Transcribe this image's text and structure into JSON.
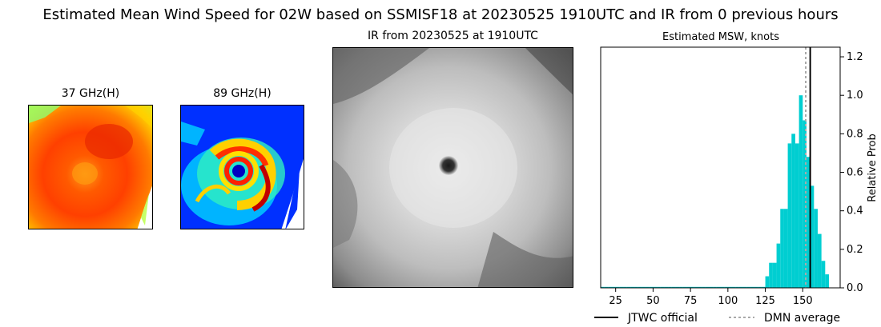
{
  "title": "Estimated Mean Wind Speed for 02W based on SSMISF18 at 20230525 1910UTC and IR from 0 previous hours",
  "panels": {
    "ghz37": {
      "title": "37 GHz(H)"
    },
    "ghz89": {
      "title": "89 GHz(H)"
    },
    "ir": {
      "title": "IR from 20230525 at 1910UTC"
    }
  },
  "colors": {
    "bars": "#00CED1",
    "jtwc_line": "#000000",
    "dmn_line": "#A9A9A9"
  },
  "chart_data": {
    "type": "bar",
    "title": "Estimated MSW, knots",
    "xlabel": "",
    "ylabel": "Relative Prob",
    "xlim": [
      15,
      175
    ],
    "ylim": [
      0,
      1.25
    ],
    "xticks": [
      25,
      50,
      75,
      100,
      125,
      150
    ],
    "yticks": [
      0.0,
      0.2,
      0.4,
      0.6,
      0.8,
      1.0,
      1.2
    ],
    "bin_width": 2.5,
    "bins": [
      {
        "x": 15,
        "value": 0.005
      },
      {
        "x": 17.5,
        "value": 0.005
      },
      {
        "x": 20,
        "value": 0.005
      },
      {
        "x": 22.5,
        "value": 0.005
      },
      {
        "x": 25,
        "value": 0.005
      },
      {
        "x": 27.5,
        "value": 0.005
      },
      {
        "x": 30,
        "value": 0.005
      },
      {
        "x": 32.5,
        "value": 0.005
      },
      {
        "x": 35,
        "value": 0.005
      },
      {
        "x": 37.5,
        "value": 0.005
      },
      {
        "x": 40,
        "value": 0.005
      },
      {
        "x": 42.5,
        "value": 0.005
      },
      {
        "x": 45,
        "value": 0.005
      },
      {
        "x": 47.5,
        "value": 0.005
      },
      {
        "x": 50,
        "value": 0.005
      },
      {
        "x": 52.5,
        "value": 0.005
      },
      {
        "x": 55,
        "value": 0.005
      },
      {
        "x": 57.5,
        "value": 0.005
      },
      {
        "x": 60,
        "value": 0.005
      },
      {
        "x": 62.5,
        "value": 0.005
      },
      {
        "x": 65,
        "value": 0.005
      },
      {
        "x": 67.5,
        "value": 0.005
      },
      {
        "x": 70,
        "value": 0.005
      },
      {
        "x": 72.5,
        "value": 0.005
      },
      {
        "x": 75,
        "value": 0.005
      },
      {
        "x": 77.5,
        "value": 0.005
      },
      {
        "x": 80,
        "value": 0.005
      },
      {
        "x": 82.5,
        "value": 0.005
      },
      {
        "x": 85,
        "value": 0.005
      },
      {
        "x": 87.5,
        "value": 0.005
      },
      {
        "x": 90,
        "value": 0.005
      },
      {
        "x": 92.5,
        "value": 0.005
      },
      {
        "x": 95,
        "value": 0.005
      },
      {
        "x": 97.5,
        "value": 0.005
      },
      {
        "x": 100,
        "value": 0.005
      },
      {
        "x": 102.5,
        "value": 0.005
      },
      {
        "x": 105,
        "value": 0.005
      },
      {
        "x": 107.5,
        "value": 0.005
      },
      {
        "x": 110,
        "value": 0.005
      },
      {
        "x": 112.5,
        "value": 0.005
      },
      {
        "x": 115,
        "value": 0.005
      },
      {
        "x": 117.5,
        "value": 0.005
      },
      {
        "x": 120,
        "value": 0.005
      },
      {
        "x": 122.5,
        "value": 0.005
      },
      {
        "x": 125,
        "value": 0.06
      },
      {
        "x": 127.5,
        "value": 0.13
      },
      {
        "x": 130,
        "value": 0.13
      },
      {
        "x": 132.5,
        "value": 0.23
      },
      {
        "x": 135,
        "value": 0.41
      },
      {
        "x": 137.5,
        "value": 0.41
      },
      {
        "x": 140,
        "value": 0.75
      },
      {
        "x": 142.5,
        "value": 0.8
      },
      {
        "x": 145,
        "value": 0.75
      },
      {
        "x": 147.5,
        "value": 1.0
      },
      {
        "x": 150,
        "value": 0.87
      },
      {
        "x": 152.5,
        "value": 0.68
      },
      {
        "x": 155,
        "value": 0.53
      },
      {
        "x": 157.5,
        "value": 0.41
      },
      {
        "x": 160,
        "value": 0.28
      },
      {
        "x": 162.5,
        "value": 0.14
      },
      {
        "x": 165,
        "value": 0.07
      }
    ],
    "lines": {
      "jtwc": {
        "x": 155,
        "label": "JTWC official"
      },
      "dmn": {
        "x": 152,
        "label": "DMN average"
      }
    },
    "legend_placement": "bottom"
  }
}
